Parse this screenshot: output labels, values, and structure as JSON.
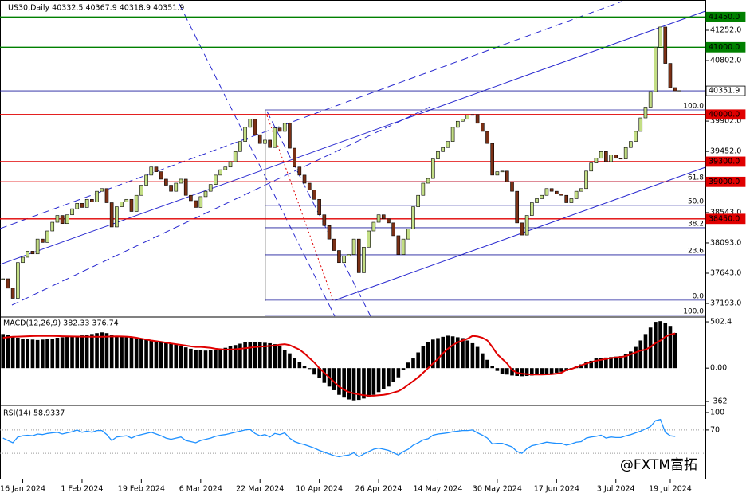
{
  "chart_data": {
    "type": "candlestick",
    "title": "US30,Daily  40332.5 40367.9 40318.9 40351.9",
    "watermark": "@FXTM富拓",
    "up_color": "#c3de85",
    "down_color": "#7b3015",
    "ylim": [
      37004,
      41678
    ],
    "yticks": [
      {
        "value": 41252,
        "label": "41252.0"
      },
      {
        "value": 40802,
        "label": "40802.0"
      },
      {
        "value": 39902,
        "label": "39902.0"
      },
      {
        "value": 39452,
        "label": "39452.0"
      },
      {
        "value": 38543,
        "label": "38543.0"
      },
      {
        "value": 38093,
        "label": "38093.0"
      },
      {
        "value": 37643,
        "label": "37643.0"
      },
      {
        "value": 37193,
        "label": "37193.0"
      }
    ],
    "xlim": [
      -0.6,
      142.1
    ],
    "xticks": [
      {
        "value": 4,
        "label": "16 Jan 2024"
      },
      {
        "value": 16,
        "label": "1 Feb 2024"
      },
      {
        "value": 28,
        "label": "19 Feb 2024"
      },
      {
        "value": 40,
        "label": "6 Mar 2024"
      },
      {
        "value": 52,
        "label": "22 Mar 2024"
      },
      {
        "value": 64,
        "label": "10 Apr 2024"
      },
      {
        "value": 76,
        "label": "26 Apr 2024"
      },
      {
        "value": 88,
        "label": "14 May 2024"
      },
      {
        "value": 100,
        "label": "30 May 2024"
      },
      {
        "value": 112,
        "label": "17 Jun 2024"
      },
      {
        "value": 124,
        "label": "3 Jul 2024"
      },
      {
        "value": 135,
        "label": "19 Jul 2024"
      }
    ],
    "levels": [
      {
        "value": 41450,
        "label": "41450.0",
        "color": "#008000"
      },
      {
        "value": 41000,
        "label": "41000.0",
        "color": "#008000"
      },
      {
        "value": 40351.9,
        "label": "40351.9",
        "color": "#1c1c9c"
      },
      {
        "value": 40000,
        "label": "40000.0",
        "color": "#e00000"
      },
      {
        "value": 39300,
        "label": "39300.0",
        "color": "#e00000"
      },
      {
        "value": 39000,
        "label": "39000.0",
        "color": "#e00000"
      },
      {
        "value": 38450,
        "label": "38450.0",
        "color": "#e00000"
      }
    ],
    "fib_levels": [
      {
        "value": 40069,
        "label": "100.0"
      },
      {
        "value": 39004,
        "label": "61.8"
      },
      {
        "value": 38650,
        "label": "50.0"
      },
      {
        "value": 38318,
        "label": "38.2"
      },
      {
        "value": 37916,
        "label": "23.6"
      },
      {
        "value": 37242,
        "label": "0.0"
      },
      {
        "value": 37017,
        "label": "100.0"
      }
    ],
    "close": [
      37560,
      37420,
      37270,
      37800,
      37880,
      37970,
      37930,
      38150,
      38100,
      38270,
      38400,
      38500,
      38380,
      38510,
      38600,
      38680,
      38620,
      38740,
      38700,
      38860,
      38900,
      38690,
      38330,
      38630,
      38700,
      38740,
      38560,
      38800,
      38950,
      39100,
      39220,
      39150,
      39040,
      38950,
      38860,
      38980,
      39040,
      38800,
      38720,
      38620,
      38780,
      38860,
      38960,
      39100,
      39180,
      39220,
      39300,
      39450,
      39600,
      39810,
      39930,
      39700,
      39570,
      39620,
      39510,
      39800,
      39750,
      39870,
      39500,
      39220,
      39100,
      38980,
      38880,
      38740,
      38510,
      38350,
      38150,
      37980,
      37800,
      37900,
      37920,
      38150,
      37650,
      38030,
      38270,
      38400,
      38510,
      38450,
      38390,
      38200,
      37920,
      38150,
      38300,
      38630,
      38800,
      38980,
      39050,
      39340,
      39450,
      39510,
      39600,
      39810,
      39900,
      39930,
      39990,
      40000,
      39870,
      39750,
      39570,
      39100,
      39150,
      39160,
      39000,
      38860,
      38390,
      38210,
      38500,
      38690,
      38750,
      38800,
      38900,
      38860,
      38820,
      38800,
      38690,
      38750,
      38860,
      38900,
      39160,
      39280,
      39350,
      39450,
      39300,
      39400,
      39350,
      39340,
      39510,
      39600,
      39750,
      39950,
      40110,
      40340,
      41000,
      41300,
      40760,
      40400,
      40352
    ],
    "macd": {
      "label": "MACD(12,26,9) 382.33 376.74",
      "hist_color": "#000000",
      "signal_color": "#e00000",
      "ylim": [
        -396,
        546
      ],
      "yticks": [
        502.4,
        {
          "value": 0,
          "label": "0.00"
        },
        -362
      ],
      "hist": [
        370,
        360,
        340,
        330,
        320,
        315,
        310,
        305,
        310,
        315,
        320,
        330,
        335,
        340,
        345,
        350,
        355,
        360,
        370,
        380,
        388,
        380,
        360,
        350,
        345,
        340,
        335,
        330,
        320,
        310,
        300,
        290,
        280,
        270,
        264,
        255,
        240,
        225,
        210,
        200,
        194,
        190,
        195,
        200,
        210,
        220,
        235,
        250,
        265,
        280,
        282,
        285,
        280,
        275,
        270,
        260,
        240,
        200,
        160,
        110,
        62,
        20,
        -10,
        -70,
        -110,
        -160,
        -200,
        -240,
        -290,
        -320,
        -340,
        -350,
        -345,
        -330,
        -310,
        -290,
        -260,
        -230,
        -200,
        -150,
        -100,
        -20,
        60,
        105,
        170,
        240,
        280,
        310,
        326,
        340,
        352,
        345,
        335,
        326,
        300,
        270,
        230,
        160,
        90,
        20,
        -30,
        -60,
        -70,
        -80,
        -85,
        -88,
        -85,
        -80,
        -75,
        -70,
        -65,
        -60,
        -50,
        -40,
        -30,
        -10,
        20,
        40,
        62,
        80,
        105,
        110,
        115,
        120,
        125,
        130,
        150,
        180,
        230,
        300,
        370,
        440,
        502,
        510,
        490,
        458,
        382
      ],
      "signal": [
        330,
        335,
        340,
        342,
        344,
        346,
        348,
        349,
        350,
        350,
        350,
        348,
        346,
        345,
        344,
        343,
        342,
        342,
        341,
        340,
        340,
        342,
        344,
        345,
        344,
        342,
        338,
        330,
        320,
        310,
        300,
        292,
        284,
        276,
        268,
        260,
        252,
        244,
        236,
        230,
        230,
        225,
        220,
        210,
        205,
        200,
        202,
        205,
        210,
        215,
        222,
        228,
        232,
        236,
        240,
        245,
        255,
        260,
        250,
        225,
        200,
        160,
        110,
        60,
        0,
        -50,
        -100,
        -150,
        -200,
        -235,
        -260,
        -275,
        -285,
        -295,
        -300,
        -300,
        -295,
        -290,
        -280,
        -265,
        -250,
        -220,
        -180,
        -140,
        -100,
        -50,
        0,
        50,
        100,
        160,
        210,
        250,
        280,
        300,
        320,
        350,
        345,
        330,
        300,
        230,
        150,
        100,
        50,
        -20,
        -50,
        -60,
        -65,
        -70,
        -70,
        -70,
        -68,
        -65,
        -60,
        -50,
        -20,
        -10,
        10,
        30,
        50,
        65,
        80,
        90,
        100,
        110,
        115,
        120,
        130,
        150,
        170,
        190,
        200,
        230,
        270,
        300,
        340,
        365,
        377
      ]
    },
    "rsi": {
      "label": "RSI(14) 58.9337",
      "color": "#1e90ff",
      "ylim": [
        -13.6,
        110.9
      ],
      "yticks": [
        100,
        70
      ],
      "levels": [
        70,
        30
      ],
      "values": [
        56,
        52,
        48,
        58,
        60,
        61,
        60,
        63,
        62,
        64,
        65,
        66,
        63,
        65,
        67,
        70,
        66,
        68,
        66,
        69,
        69,
        62,
        52,
        58,
        59,
        60,
        56,
        60,
        62,
        64,
        66,
        63,
        60,
        56,
        54,
        56,
        58,
        52,
        50,
        48,
        52,
        54,
        56,
        59,
        61,
        62,
        64,
        66,
        68,
        70,
        71,
        64,
        60,
        62,
        58,
        64,
        62,
        65,
        56,
        50,
        47,
        45,
        42,
        39,
        35,
        32,
        29,
        26,
        24,
        26,
        27,
        31,
        24,
        29,
        33,
        37,
        39,
        37,
        35,
        31,
        27,
        33,
        37,
        44,
        48,
        53,
        55,
        61,
        63,
        64,
        65,
        67,
        68,
        69,
        69,
        70,
        65,
        61,
        56,
        46,
        47,
        47,
        44,
        41,
        33,
        30,
        38,
        43,
        45,
        47,
        49,
        48,
        47,
        47,
        44,
        46,
        49,
        50,
        56,
        58,
        59,
        61,
        56,
        58,
        57,
        57,
        60,
        62,
        65,
        68,
        72,
        76,
        86,
        88,
        66,
        60,
        58.9
      ]
    }
  }
}
